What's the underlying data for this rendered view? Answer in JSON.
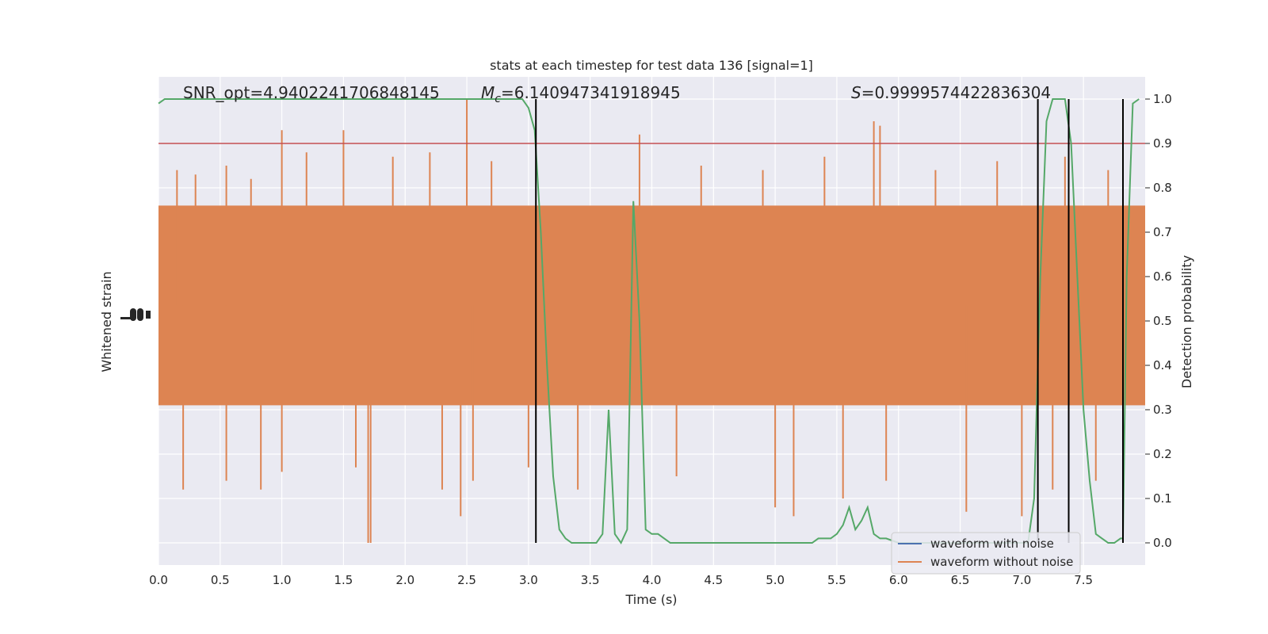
{
  "chart_data": {
    "type": "line",
    "title": "stats at each timestep for test data 136 [signal=1]",
    "xlabel": "Time (s)",
    "ylabel_left": "Whitened strain",
    "ylabel_right": "Detection probability",
    "xlim": [
      0.0,
      8.0
    ],
    "ylim_right": [
      -0.05,
      1.05
    ],
    "x_ticks": [
      "0.0",
      "0.5",
      "1.0",
      "1.5",
      "2.0",
      "2.5",
      "3.0",
      "3.5",
      "4.0",
      "4.5",
      "5.0",
      "5.5",
      "6.0",
      "6.5",
      "7.0",
      "7.5"
    ],
    "y_ticks_right": [
      "0.0",
      "0.1",
      "0.2",
      "0.3",
      "0.4",
      "0.5",
      "0.6",
      "0.7",
      "0.8",
      "0.9",
      "1.0"
    ],
    "grid": true,
    "background": "#eaeaf2",
    "annotations": {
      "snr": "SNR_opt=4.9402241706848145",
      "mc_symbol": "M",
      "mc_sub": "c",
      "mc_value": "=6.140947341918945",
      "s_symbol": "S",
      "s_value": "=0.9999574422836304"
    },
    "threshold": {
      "y": 0.9,
      "color": "#c44e52"
    },
    "vlines_x": [
      3.06,
      7.13,
      7.38,
      7.82
    ],
    "legend": {
      "placement": "lower right",
      "entries": [
        {
          "label": "waveform with noise",
          "color": "#4c72b0"
        },
        {
          "label": "waveform without noise",
          "color": "#dd8452"
        }
      ]
    },
    "series": [
      {
        "name": "waveform with noise",
        "color": "#4c72b0",
        "axis": "left",
        "values": []
      },
      {
        "name": "waveform without noise",
        "color": "#dd8452",
        "axis": "left",
        "band_detection_prob": [
          0.31,
          0.76
        ],
        "spikes": [
          [
            0.15,
            0.84
          ],
          [
            0.3,
            0.83
          ],
          [
            0.55,
            0.85
          ],
          [
            0.75,
            0.82
          ],
          [
            1.0,
            0.93
          ],
          [
            1.2,
            0.88
          ],
          [
            1.5,
            0.93
          ],
          [
            1.9,
            0.87
          ],
          [
            2.2,
            0.88
          ],
          [
            2.5,
            1.0
          ],
          [
            2.7,
            0.86
          ],
          [
            3.9,
            0.92
          ],
          [
            4.4,
            0.85
          ],
          [
            4.9,
            0.84
          ],
          [
            5.4,
            0.87
          ],
          [
            5.8,
            0.95
          ],
          [
            5.85,
            0.94
          ],
          [
            6.3,
            0.84
          ],
          [
            6.8,
            0.86
          ],
          [
            7.35,
            0.87
          ],
          [
            7.7,
            0.84
          ],
          [
            0.2,
            0.12
          ],
          [
            0.55,
            0.14
          ],
          [
            0.83,
            0.12
          ],
          [
            1.0,
            0.16
          ],
          [
            1.6,
            0.17
          ],
          [
            1.7,
            0.0
          ],
          [
            1.72,
            0.0
          ],
          [
            2.3,
            0.12
          ],
          [
            2.45,
            0.06
          ],
          [
            2.55,
            0.14
          ],
          [
            3.0,
            0.17
          ],
          [
            3.4,
            0.12
          ],
          [
            4.2,
            0.15
          ],
          [
            5.0,
            0.08
          ],
          [
            5.15,
            0.06
          ],
          [
            5.55,
            0.1
          ],
          [
            5.9,
            0.14
          ],
          [
            6.55,
            0.07
          ],
          [
            7.0,
            0.06
          ],
          [
            7.25,
            0.12
          ],
          [
            7.6,
            0.14
          ]
        ]
      },
      {
        "name": "detection probability",
        "color": "#55a868",
        "axis": "right",
        "x": [
          0.0,
          0.05,
          0.1,
          0.2,
          0.5,
          1.0,
          1.5,
          2.0,
          2.5,
          2.8,
          2.9,
          2.95,
          3.0,
          3.05,
          3.1,
          3.15,
          3.2,
          3.25,
          3.3,
          3.35,
          3.4,
          3.5,
          3.55,
          3.6,
          3.65,
          3.7,
          3.75,
          3.8,
          3.85,
          3.9,
          3.95,
          4.0,
          4.05,
          4.1,
          4.15,
          4.2,
          4.3,
          4.5,
          5.0,
          5.25,
          5.3,
          5.35,
          5.4,
          5.45,
          5.5,
          5.55,
          5.6,
          5.65,
          5.7,
          5.75,
          5.8,
          5.85,
          5.9,
          6.0,
          6.5,
          6.9,
          7.0,
          7.05,
          7.1,
          7.15,
          7.2,
          7.25,
          7.3,
          7.35,
          7.4,
          7.45,
          7.5,
          7.55,
          7.6,
          7.65,
          7.7,
          7.75,
          7.8,
          7.82,
          7.85,
          7.9,
          7.95
        ],
        "y": [
          0.99,
          1.0,
          1.0,
          1.0,
          1.0,
          1.0,
          1.0,
          1.0,
          1.0,
          1.0,
          1.0,
          1.0,
          0.98,
          0.93,
          0.7,
          0.4,
          0.15,
          0.03,
          0.01,
          0.0,
          0.0,
          0.0,
          0.0,
          0.02,
          0.3,
          0.02,
          0.0,
          0.03,
          0.77,
          0.5,
          0.03,
          0.02,
          0.02,
          0.01,
          0.0,
          0.0,
          0.0,
          0.0,
          0.0,
          0.0,
          0.0,
          0.01,
          0.01,
          0.01,
          0.02,
          0.04,
          0.08,
          0.03,
          0.05,
          0.08,
          0.02,
          0.01,
          0.01,
          0.0,
          0.0,
          0.0,
          0.0,
          0.0,
          0.1,
          0.6,
          0.95,
          1.0,
          1.0,
          1.0,
          0.9,
          0.6,
          0.3,
          0.14,
          0.02,
          0.01,
          0.0,
          0.0,
          0.01,
          0.01,
          0.6,
          0.99,
          1.0
        ]
      }
    ]
  }
}
